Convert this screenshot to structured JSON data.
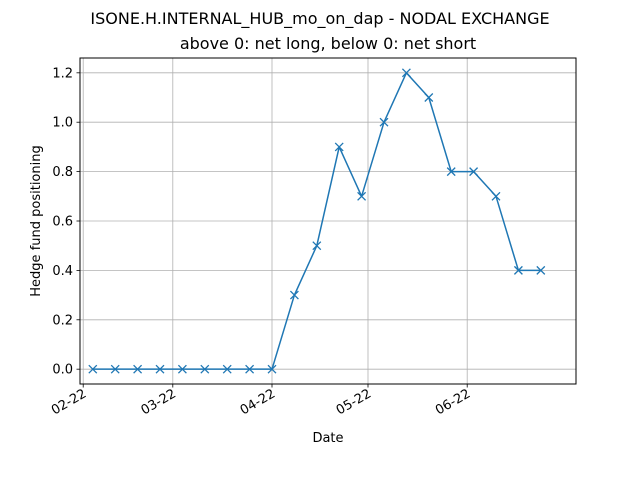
{
  "chart_data": {
    "type": "line",
    "title": "ISONE.H.INTERNAL_HUB_mo_on_dap - NODAL EXCHANGE",
    "subtitle": "above 0: net long, below 0: net short",
    "xlabel": "Date",
    "ylabel": "Hedge fund positioning",
    "grid": true,
    "xlim": [
      "2022-01-31",
      "2022-07-05"
    ],
    "ylim": [
      -0.06,
      1.26
    ],
    "x_ticks": [
      {
        "label": "02-22",
        "date": "2022-02-01"
      },
      {
        "label": "03-22",
        "date": "2022-03-01"
      },
      {
        "label": "04-22",
        "date": "2022-04-01"
      },
      {
        "label": "05-22",
        "date": "2022-05-01"
      },
      {
        "label": "06-22",
        "date": "2022-06-01"
      }
    ],
    "y_ticks": [
      0.0,
      0.2,
      0.4,
      0.6,
      0.8,
      1.0,
      1.2
    ],
    "series": [
      {
        "color": "#1f77b4",
        "marker": "x",
        "x": [
          "2022-02-04",
          "2022-02-11",
          "2022-02-18",
          "2022-02-25",
          "2022-03-04",
          "2022-03-11",
          "2022-03-18",
          "2022-03-25",
          "2022-04-01",
          "2022-04-08",
          "2022-04-15",
          "2022-04-22",
          "2022-04-29",
          "2022-05-06",
          "2022-05-13",
          "2022-05-20",
          "2022-05-27",
          "2022-06-03",
          "2022-06-10",
          "2022-06-17",
          "2022-06-24"
        ],
        "y": [
          0.0,
          0.0,
          0.0,
          0.0,
          0.0,
          0.0,
          0.0,
          0.0,
          0.0,
          0.3,
          0.5,
          0.9,
          0.7,
          1.0,
          1.2,
          1.1,
          0.8,
          0.8,
          0.7,
          0.4,
          0.4
        ]
      }
    ]
  }
}
